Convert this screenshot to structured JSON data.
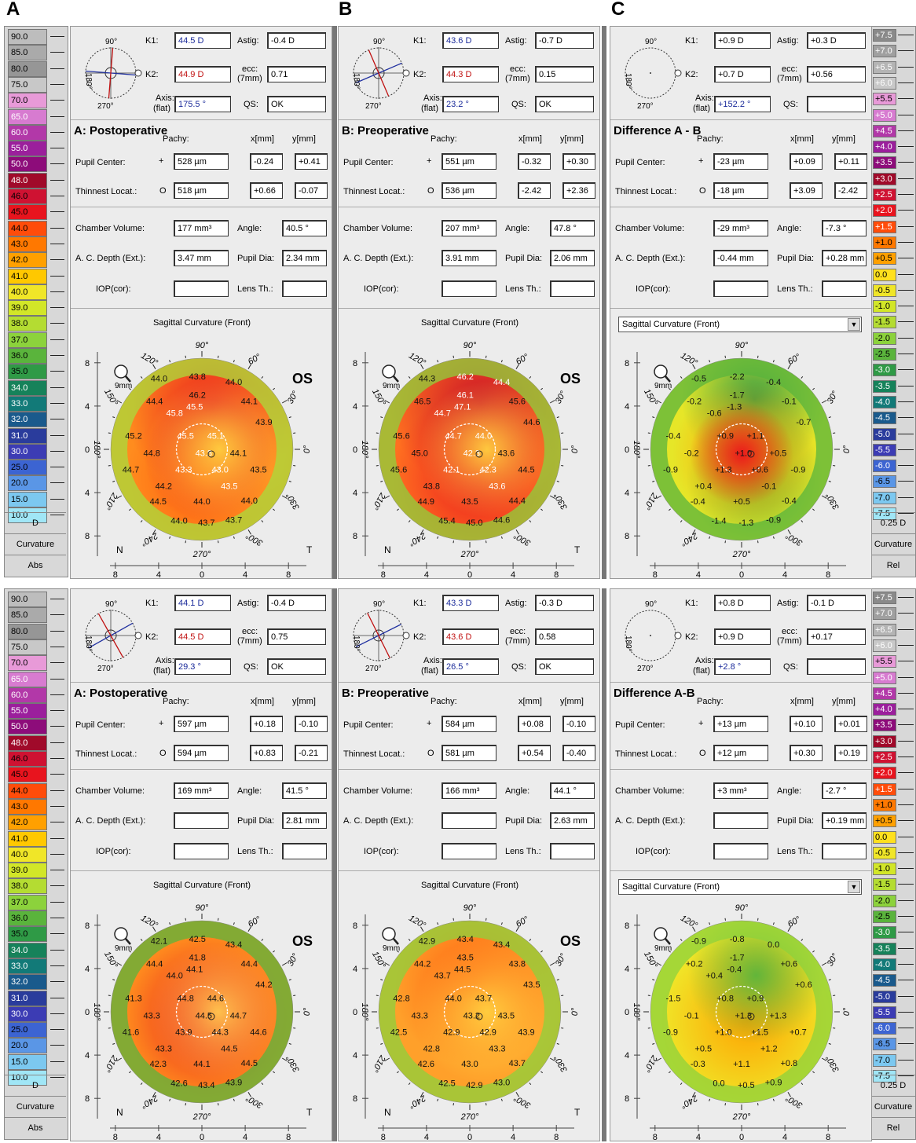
{
  "figure_labels": [
    "A",
    "B",
    "C"
  ],
  "left_scale": {
    "values": [
      "90.0",
      "85.0",
      "80.0",
      "75.0",
      "70.0",
      "65.0",
      "60.0",
      "55.0",
      "50.0",
      "48.0",
      "46.0",
      "45.0",
      "44.0",
      "43.0",
      "42.0",
      "41.0",
      "40.0",
      "39.0",
      "38.0",
      "37.0",
      "36.0",
      "35.0",
      "34.0",
      "33.0",
      "32.0",
      "31.0",
      "30.0",
      "25.0",
      "20.0",
      "15.0",
      "10.0"
    ],
    "colors": [
      "#bdbdbd",
      "#aaaaaa",
      "#969696",
      "#c8c8c8",
      "#e89ad8",
      "#d77bd0",
      "#b238a8",
      "#9b1f9c",
      "#8d0c7a",
      "#a00a2a",
      "#cf1232",
      "#e8141e",
      "#ff4c0a",
      "#ff7800",
      "#ffa000",
      "#ffc800",
      "#f0e628",
      "#d2e628",
      "#b4dc32",
      "#8cd23c",
      "#5ab43c",
      "#2f9a46",
      "#16825a",
      "#127a78",
      "#1a5a8c",
      "#2a3c9c",
      "#3c3cb4",
      "#3c64d2",
      "#5a96e6",
      "#7cc8f0",
      "#a0e6f6"
    ],
    "unit": "D",
    "mode": "Curvature",
    "type": "Abs"
  },
  "right_scale": {
    "values": [
      "+7.5",
      "+7.0",
      "+6.5",
      "+6.0",
      "+5.5",
      "+5.0",
      "+4.5",
      "+4.0",
      "+3.5",
      "+3.0",
      "+2.5",
      "+2.0",
      "+1.5",
      "+1.0",
      "+0.5",
      "0.0",
      "-0.5",
      "-1.0",
      "-1.5",
      "-2.0",
      "-2.5",
      "-3.0",
      "-3.5",
      "-4.0",
      "-4.5",
      "-5.0",
      "-5.5",
      "-6.0",
      "-6.5",
      "-7.0",
      "-7.5"
    ],
    "colors": [
      "#8a8a8a",
      "#a0a0a0",
      "#b4b4b4",
      "#c8c8c8",
      "#e89ad8",
      "#d77bd0",
      "#b238a8",
      "#9b1f9c",
      "#8d0c7a",
      "#a00a2a",
      "#cf1232",
      "#e8141e",
      "#ff4c0a",
      "#ff7800",
      "#ffa000",
      "#ffe01e",
      "#f0e628",
      "#d2e628",
      "#b4dc32",
      "#8cd23c",
      "#5ab43c",
      "#2f9a46",
      "#16825a",
      "#127a78",
      "#1a5a8c",
      "#2a3c9c",
      "#3c3cb4",
      "#3c64d2",
      "#5a96e6",
      "#7cc8f0",
      "#a0e6f6"
    ],
    "step": "0.25 D",
    "mode": "Curvature",
    "type": "Rel"
  },
  "common": {
    "k1_label": "K1:",
    "k2_label": "K2:",
    "astig_label": "Astig:",
    "ecc_label": "ecc:",
    "ecc_sub": "(7mm)",
    "axis_label": "Axis:",
    "axis_sub": "(flat)",
    "qs_label": "QS:",
    "pachy_label": "Pachy:",
    "x_label": "x[mm]",
    "y_label": "y[mm]",
    "pupil_center": "Pupil Center:",
    "thinnest": "Thinnest Locat.:",
    "chamber_volume": "Chamber Volume:",
    "angle": "Angle:",
    "acdepth": "A. C. Depth (Ext.):",
    "pupil_dia": "Pupil Dia:",
    "iop": "IOP(cor):",
    "lens": "Lens Th.:",
    "map_title": "Sagittal Curvature (Front)",
    "eye": "OS",
    "nasal": "N",
    "temporal": "T",
    "magnifier": "9mm",
    "deg90": "90°",
    "deg180": "180°",
    "deg270": "270°",
    "deg0": "0°",
    "deg120": "120°",
    "deg60": "60°",
    "deg150": "150°",
    "deg30": "30°",
    "deg210": "210°",
    "deg330": "330°",
    "deg240": "240°",
    "deg300": "300°",
    "yticks": [
      "8",
      "4",
      "0",
      "4",
      "8"
    ],
    "xticks": [
      "8",
      "4",
      "0",
      "4",
      "8"
    ],
    "plus": "+",
    "circle": "O"
  },
  "panels": [
    {
      "title": "A: Postoperative",
      "k1": "44.5 D",
      "k2": "44.9 D",
      "astig": "-0.4 D",
      "ecc": "0.71",
      "axis": "175.5 °",
      "qs": "OK",
      "pc_pachy": "528 µm",
      "pc_x": "-0.24",
      "pc_y": "+0.41",
      "tl_pachy": "518 µm",
      "tl_x": "+0.66",
      "tl_y": "-0.07",
      "cv": "177 mm³",
      "angle": "40.5 °",
      "acd": "3.47 mm",
      "pdia": "2.34 mm",
      "iop": "",
      "lens": "",
      "map_values": [
        "44.0",
        "43.8",
        "44.0",
        "46.2",
        "44.4",
        "45.8",
        "45.5",
        "44.1",
        "45.2",
        "45.5",
        "45.1",
        "43.9",
        "44.8",
        "43.8",
        "44.1",
        "44.7",
        "43.3",
        "43.0",
        "43.5",
        "44.2",
        "43.5",
        "44.5",
        "44.0",
        "44.0",
        "44.0",
        "43.7",
        "43.7"
      ]
    },
    {
      "title": "B: Preoperative",
      "k1": "43.6 D",
      "k2": "44.3 D",
      "astig": "-0.7 D",
      "ecc": "0.15",
      "axis": "23.2 °",
      "qs": "OK",
      "pc_pachy": "551 µm",
      "pc_x": "-0.32",
      "pc_y": "+0.30",
      "tl_pachy": "536 µm",
      "tl_x": "-2.42",
      "tl_y": "+2.36",
      "cv": "207 mm³",
      "angle": "47.8 °",
      "acd": "3.91 mm",
      "pdia": "2.06 mm",
      "iop": "",
      "lens": "",
      "map_values": [
        "44.3",
        "46.2",
        "44.4",
        "46.1",
        "46.5",
        "44.7",
        "47.1",
        "45.6",
        "45.6",
        "44.7",
        "44.0",
        "44.6",
        "45.0",
        "42.3",
        "43.6",
        "45.6",
        "42.1",
        "42.3",
        "44.5",
        "43.8",
        "43.6",
        "44.9",
        "43.5",
        "44.4",
        "45.4",
        "45.0",
        "44.6"
      ]
    },
    {
      "title": "Difference A - B",
      "k1": "+0.9 D",
      "k2": "+0.7 D",
      "astig": "+0.3 D",
      "ecc": "+0.56",
      "axis": "+152.2 °",
      "qs": "",
      "pc_pachy": "-23 µm",
      "pc_x": "+0.09",
      "pc_y": "+0.11",
      "tl_pachy": "-18 µm",
      "tl_x": "+3.09",
      "tl_y": "-2.42",
      "cv": "-29 mm³",
      "angle": "-7.3 °",
      "acd": "-0.44 mm",
      "pdia": "+0.28 mm",
      "iop": "",
      "lens": "",
      "map_values": [
        "-0.5",
        "-2.2",
        "-0.4",
        "-1.7",
        "-0.2",
        "-0.6",
        "-1.3",
        "-0.1",
        "-0.4",
        "+0.9",
        "+1.1",
        "-0.7",
        "-0.2",
        "+1.0",
        "+0.5",
        "-0.9",
        "+1.3",
        "+0.6",
        "-0.9",
        "+0.4",
        "-0.1",
        "-0.4",
        "+0.5",
        "-0.4",
        "-1.4",
        "-1.3",
        "-0.9"
      ]
    },
    {
      "title": "A: Postoperative",
      "k1": "44.1 D",
      "k2": "44.5 D",
      "astig": "-0.4 D",
      "ecc": "0.75",
      "axis": "29.3 °",
      "qs": "OK",
      "pc_pachy": "597 µm",
      "pc_x": "+0.18",
      "pc_y": "-0.10",
      "tl_pachy": "594 µm",
      "tl_x": "+0.83",
      "tl_y": "-0.21",
      "cv": "169 mm³",
      "angle": "41.5 °",
      "acd": "",
      "pdia": "2.81 mm",
      "iop": "",
      "lens": "",
      "map_values": [
        "42.1",
        "42.5",
        "43.4",
        "41.8",
        "44.4",
        "44.0",
        "44.1",
        "44.4",
        "41.3",
        "44.8",
        "44.6",
        "44.2",
        "43.3",
        "44.5",
        "44.7",
        "41.6",
        "43.9",
        "44.3",
        "44.6",
        "43.3",
        "44.5",
        "42.3",
        "44.1",
        "44.5",
        "42.6",
        "43.4",
        "43.9"
      ]
    },
    {
      "title": "B: Preoperative",
      "k1": "43.3 D",
      "k2": "43.6 D",
      "astig": "-0.3 D",
      "ecc": "0.58",
      "axis": "26.5 °",
      "qs": "OK",
      "pc_pachy": "584 µm",
      "pc_x": "+0.08",
      "pc_y": "-0.10",
      "tl_pachy": "581 µm",
      "tl_x": "+0.54",
      "tl_y": "-0.40",
      "cv": "166 mm³",
      "angle": "44.1 °",
      "acd": "",
      "pdia": "2.63 mm",
      "iop": "",
      "lens": "",
      "map_values": [
        "42.9",
        "43.4",
        "43.4",
        "43.5",
        "44.2",
        "43.7",
        "44.5",
        "43.8",
        "42.8",
        "44.0",
        "43.7",
        "43.5",
        "43.3",
        "43.2",
        "43.5",
        "42.5",
        "42.9",
        "42.9",
        "43.9",
        "42.8",
        "43.3",
        "42.6",
        "43.0",
        "43.7",
        "42.5",
        "42.9",
        "43.0"
      ]
    },
    {
      "title": "Difference A-B",
      "k1": "+0.8 D",
      "k2": "+0.9 D",
      "astig": "-0.1 D",
      "ecc": "+0.17",
      "axis": "+2.8 °",
      "qs": "",
      "pc_pachy": "+13 µm",
      "pc_x": "+0.10",
      "pc_y": "+0.01",
      "tl_pachy": "+12 µm",
      "tl_x": "+0.30",
      "tl_y": "+0.19",
      "cv": "+3 mm³",
      "angle": "-2.7 °",
      "acd": "",
      "pdia": "+0.19 mm",
      "iop": "",
      "lens": "",
      "map_values": [
        "-0.9",
        "-0.8",
        "0.0",
        "-1.7",
        "+0.2",
        "+0.4",
        "-0.4",
        "+0.6",
        "-1.5",
        "+0.8",
        "+0.9",
        "+0.6",
        "-0.1",
        "+1.3",
        "+1.3",
        "-0.9",
        "+1.0",
        "+1.5",
        "+0.7",
        "+0.5",
        "+1.2",
        "-0.3",
        "+1.1",
        "+0.8",
        "0.0",
        "+0.5",
        "+0.9"
      ]
    }
  ],
  "accent": {
    "k1_color": "#1a2a9a",
    "k2_color": "#c01010",
    "axis_color": "#1a2a9a"
  }
}
